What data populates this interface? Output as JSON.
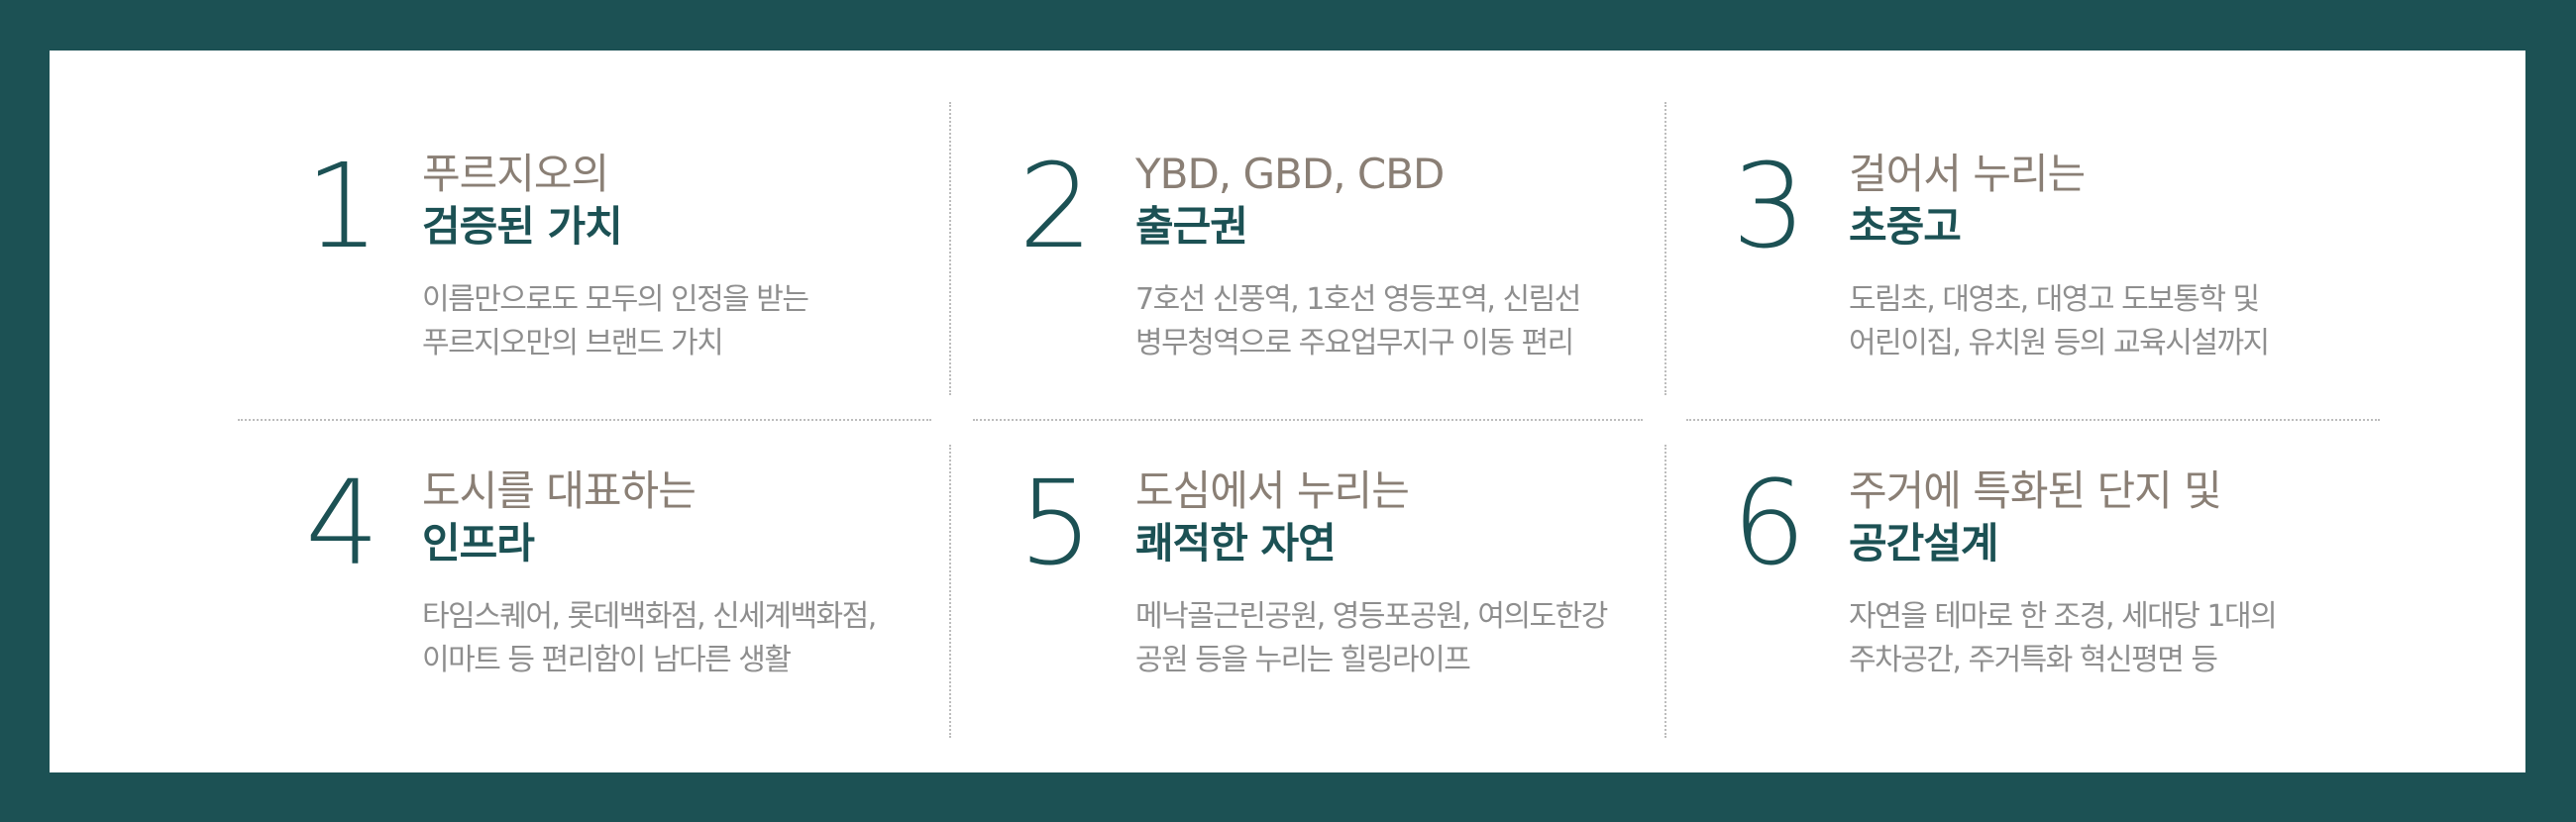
{
  "features": [
    {
      "number": "1",
      "title_line1": "푸르지오의",
      "title_line2": "검증된 가치",
      "desc_line1": "이름만으로도 모두의 인정을 받는",
      "desc_line2": "푸르지오만의 브랜드 가치"
    },
    {
      "number": "2",
      "title_line1": "YBD, GBD, CBD",
      "title_line2": "출근권",
      "desc_line1": "7호선 신풍역, 1호선 영등포역, 신림선",
      "desc_line2": "병무청역으로 주요업무지구 이동 편리"
    },
    {
      "number": "3",
      "title_line1": "걸어서 누리는",
      "title_line2": "초중고",
      "desc_line1": "도림초, 대영초, 대영고 도보통학 및",
      "desc_line2": "어린이집, 유치원 등의 교육시설까지"
    },
    {
      "number": "4",
      "title_line1": "도시를 대표하는",
      "title_line2": "인프라",
      "desc_line1": "타임스퀘어, 롯데백화점, 신세계백화점,",
      "desc_line2": "이마트 등 편리함이 남다른 생활"
    },
    {
      "number": "5",
      "title_line1": "도심에서 누리는",
      "title_line2": "쾌적한 자연",
      "desc_line1": "메낙골근린공원, 영등포공원, 여의도한강",
      "desc_line2": "공원 등을 누리는 힐링라이프"
    },
    {
      "number": "6",
      "title_line1": "주거에 특화된 단지 및",
      "title_line2": "공간설계",
      "desc_line1": "자연을 테마로 한 조경, 세대당 1대의",
      "desc_line2": "주차공간, 주거특화 혁신평면 등"
    }
  ],
  "colors": {
    "frame_background": "#1c5154",
    "panel_background": "#ffffff",
    "accent_teal": "#1c5154",
    "title_gray": "#8a7f75",
    "desc_gray": "#8e8e8e"
  }
}
